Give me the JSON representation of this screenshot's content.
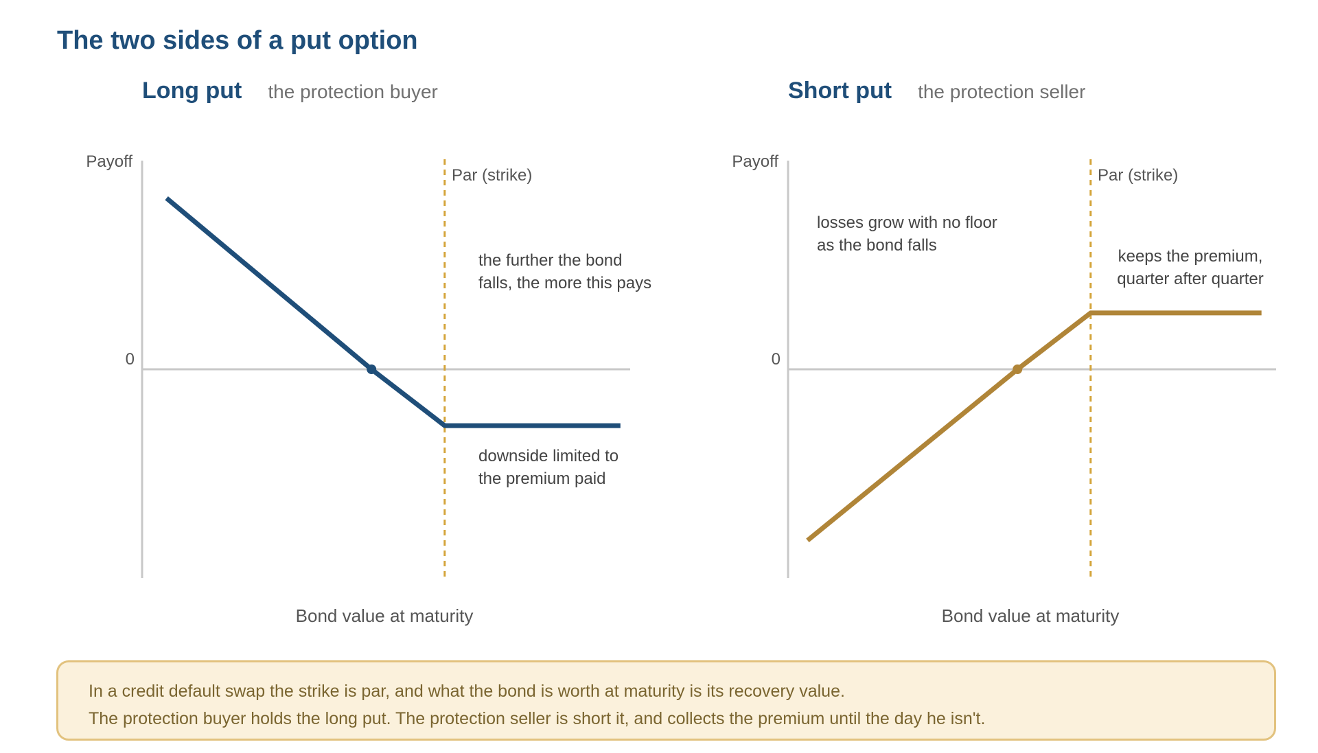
{
  "title": "The two sides of a put option",
  "panels": {
    "long": {
      "heading": "Long put",
      "subheading": "the protection buyer",
      "y_label": "Payoff",
      "zero_label": "0",
      "x_label": "Bond value at maturity",
      "strike_label": "Par (strike)",
      "annotations": [
        [
          "the further the bond",
          "falls, the more this pays"
        ],
        [
          "downside limited to",
          "the premium paid"
        ]
      ]
    },
    "short": {
      "heading": "Short put",
      "subheading": "the protection seller",
      "y_label": "Payoff",
      "zero_label": "0",
      "x_label": "Bond value at maturity",
      "strike_label": "Par (strike)",
      "annotations": [
        [
          "losses grow with no floor",
          "as the bond falls"
        ],
        [
          "keeps the premium,",
          "quarter after quarter"
        ]
      ]
    }
  },
  "chart_data": [
    {
      "type": "line",
      "name": "Long put payoff",
      "x": [
        0.05,
        0.47,
        0.62,
        0.98
      ],
      "y": [
        0.82,
        0.0,
        -0.27,
        -0.27
      ],
      "strike_x": 0.62,
      "breakeven": [
        0.47,
        0.0
      ],
      "xlim": [
        0,
        1
      ],
      "ylim": [
        -1,
        1
      ],
      "color": "#1f4e79"
    },
    {
      "type": "line",
      "name": "Short put payoff",
      "x": [
        0.04,
        0.47,
        0.62,
        0.97
      ],
      "y": [
        -0.82,
        0.0,
        0.27,
        0.27
      ],
      "strike_x": 0.62,
      "breakeven": [
        0.47,
        0.0
      ],
      "xlim": [
        0,
        1
      ],
      "ylim": [
        -1,
        1
      ],
      "color": "#b08538"
    }
  ],
  "strike_color": "#d4a43a",
  "axis_color": "#c8c8c8",
  "note": {
    "lines": [
      "In a credit default swap the strike is par, and what the bond is worth at maturity is its recovery value.",
      "The protection buyer holds the long put. The protection seller is short it, and collects the premium until the day he isn't."
    ]
  }
}
